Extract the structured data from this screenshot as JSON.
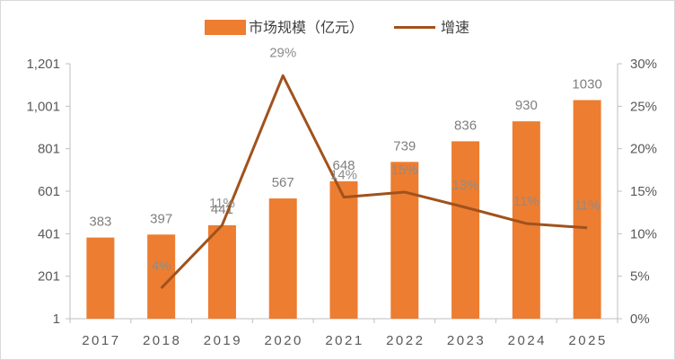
{
  "chart_data": {
    "type": "bar",
    "categories": [
      "2017",
      "2018",
      "2019",
      "2020",
      "2021",
      "2022",
      "2023",
      "2024",
      "2025"
    ],
    "series": [
      {
        "name": "市场规模（亿元）",
        "type": "bar",
        "axis": "left",
        "color": "#ED7D31",
        "values": [
          383,
          397,
          441,
          567,
          648,
          739,
          836,
          930,
          1030
        ],
        "labels": [
          "383",
          "397",
          "441",
          "567",
          "648",
          "739",
          "836",
          "930",
          "1030"
        ]
      },
      {
        "name": "增速",
        "type": "line",
        "axis": "right",
        "color": "#A0521C",
        "values": [
          null,
          0.036,
          0.11,
          0.286,
          0.143,
          0.149,
          0.131,
          0.112,
          0.107
        ],
        "labels": [
          "",
          "4%",
          "11%",
          "29%",
          "14%",
          "15%",
          "13%",
          "11%",
          "11%"
        ]
      }
    ],
    "y_left": {
      "min": 1,
      "max": 1201,
      "ticks": [
        "1",
        "201",
        "401",
        "601",
        "801",
        "1,001",
        "1,201"
      ]
    },
    "y_right": {
      "min": 0,
      "max": 0.3,
      "ticks": [
        "0%",
        "5%",
        "10%",
        "15%",
        "20%",
        "25%",
        "30%"
      ]
    },
    "grid": false,
    "legend": "top"
  }
}
